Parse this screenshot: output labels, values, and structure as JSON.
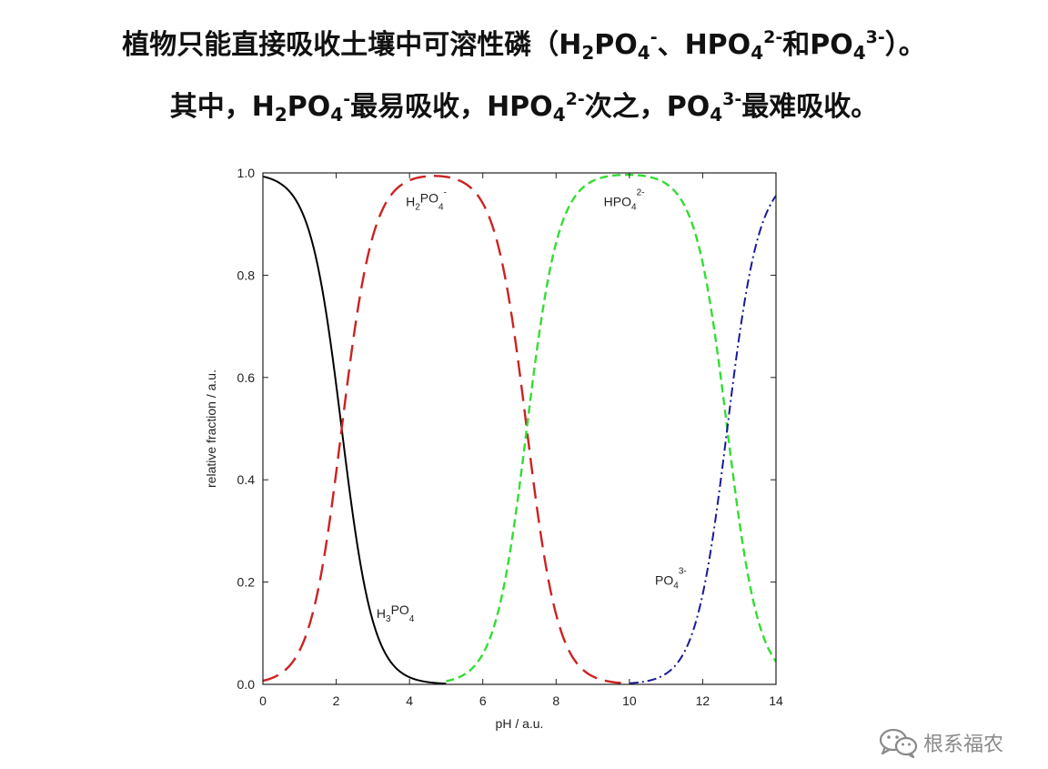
{
  "headline": {
    "line1": {
      "prefix": "植物只能直接吸收土壤中可溶性磷（",
      "sp1_main": "H",
      "sp1_sub1": "2",
      "sp1_mid": "PO",
      "sp1_sub2": "4",
      "sp1_sup": "-",
      "sep1": "、",
      "sp2_main": "HPO",
      "sp2_sub": "4",
      "sp2_sup": "2-",
      "sep2": "和",
      "sp3_main": "PO",
      "sp3_sub": "4",
      "sp3_sup": "3-",
      "suffix": "）。"
    },
    "line2": {
      "prefix": "其中，",
      "sp1_main": "H",
      "sp1_sub1": "2",
      "sp1_mid": "PO",
      "sp1_sub2": "4",
      "sp1_sup": "-",
      "text1": "最易吸收，",
      "sp2_main": "HPO",
      "sp2_sub": "4",
      "sp2_sup": "2-",
      "text2": "次之，",
      "sp3_main": "PO",
      "sp3_sub": "4",
      "sp3_sup": "3-",
      "text3": "最难吸收。"
    }
  },
  "chart_data": {
    "type": "line",
    "xlabel": "pH / a.u.",
    "ylabel": "relative fraction / a.u.",
    "xlim": [
      0,
      14
    ],
    "ylim": [
      0,
      1.0
    ],
    "x_ticks": [
      0,
      2,
      4,
      6,
      8,
      10,
      12,
      14
    ],
    "y_ticks": [
      0.0,
      0.2,
      0.4,
      0.6,
      0.8,
      1.0
    ],
    "x_tick_labels": [
      "0",
      "2",
      "4",
      "6",
      "8",
      "10",
      "12",
      "14"
    ],
    "y_tick_labels": [
      "0.0",
      "0.2",
      "0.4",
      "0.6",
      "0.8",
      "1.0"
    ],
    "grid": false,
    "pKa": [
      2.15,
      7.2,
      12.67
    ],
    "series": [
      {
        "label_main": "H",
        "label_sub1": "3",
        "label_mid": "PO",
        "label_sub2": "4",
        "label_sup": "",
        "color": "#000000",
        "dash": "solid",
        "x_range": [
          0,
          5
        ],
        "label_at": [
          3.1,
          0.13
        ],
        "values": [
          [
            0,
            0.993
          ],
          [
            1,
            0.934
          ],
          [
            2,
            0.586
          ],
          [
            2.15,
            0.5
          ],
          [
            3,
            0.124
          ],
          [
            4,
            0.014
          ],
          [
            5,
            0.001
          ]
        ]
      },
      {
        "label_main": "H",
        "label_sub1": "2",
        "label_mid": "PO",
        "label_sub2": "4",
        "label_sup": "-",
        "color": "#cc2222",
        "dash": "long-dash",
        "x_range": [
          0,
          10
        ],
        "label_at": [
          3.9,
          0.935
        ],
        "values": [
          [
            0,
            0.007
          ],
          [
            1,
            0.066
          ],
          [
            2,
            0.414
          ],
          [
            2.15,
            0.5
          ],
          [
            3,
            0.875
          ],
          [
            4,
            0.98
          ],
          [
            5,
            0.998
          ],
          [
            6,
            0.94
          ],
          [
            7,
            0.613
          ],
          [
            7.2,
            0.5
          ],
          [
            8,
            0.137
          ],
          [
            9,
            0.016
          ],
          [
            10,
            0.002
          ]
        ]
      },
      {
        "label_main": "HPO",
        "label_sub1": "",
        "label_mid": "",
        "label_sub2": "4",
        "label_sup": "2-",
        "color": "#33dd33",
        "dash": "short-dash",
        "x_range": [
          5,
          14
        ],
        "label_at": [
          9.3,
          0.935
        ],
        "values": [
          [
            5,
            0.006
          ],
          [
            6,
            0.059
          ],
          [
            7,
            0.387
          ],
          [
            7.2,
            0.5
          ],
          [
            8,
            0.863
          ],
          [
            9,
            0.984
          ],
          [
            10,
            0.997
          ],
          [
            11,
            0.979
          ],
          [
            12,
            0.824
          ],
          [
            12.67,
            0.5
          ],
          [
            13,
            0.319
          ],
          [
            14,
            0.045
          ]
        ]
      },
      {
        "label_main": "PO",
        "label_sub1": "",
        "label_mid": "",
        "label_sub2": "4",
        "label_sup": "3-",
        "color": "#1a1a99",
        "dash": "dash-dot",
        "x_range": [
          10,
          14
        ],
        "label_at": [
          10.7,
          0.195
        ],
        "values": [
          [
            10,
            0.002
          ],
          [
            11,
            0.021
          ],
          [
            12,
            0.176
          ],
          [
            12.67,
            0.5
          ],
          [
            13,
            0.681
          ],
          [
            14,
            0.955
          ]
        ]
      }
    ]
  },
  "watermark": {
    "text": "根系福农",
    "icon": "wechat-icon"
  }
}
